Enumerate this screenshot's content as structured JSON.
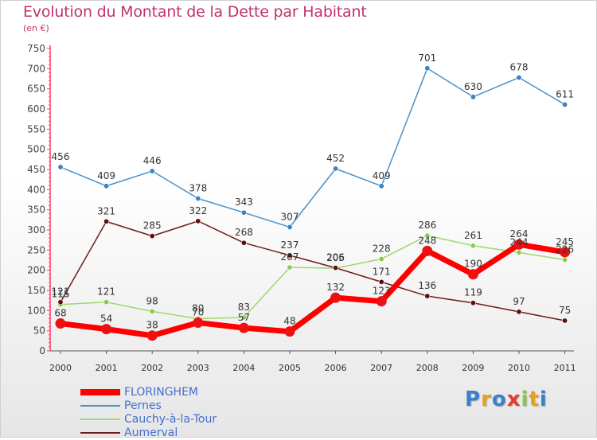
{
  "chart_data": {
    "type": "line",
    "title": "Evolution du Montant de la Dette par Habitant",
    "subtitle": "(en €)",
    "categories": [
      "2000",
      "2001",
      "2002",
      "2003",
      "2004",
      "2005",
      "2006",
      "2007",
      "2008",
      "2009",
      "2010",
      "2011"
    ],
    "ylim": [
      0,
      750
    ],
    "yticks": [
      0,
      50,
      100,
      150,
      200,
      250,
      300,
      350,
      400,
      450,
      500,
      550,
      600,
      650,
      700,
      750
    ],
    "grid": false,
    "legend_position": "bottom-left",
    "series": [
      {
        "name": "FLORINGHEM",
        "color": "#ff0000",
        "marker_color": "#ee1111",
        "width": "thick",
        "values": [
          68,
          54,
          38,
          70,
          57,
          48,
          132,
          123,
          248,
          190,
          264,
          245
        ]
      },
      {
        "name": "Pernes",
        "color": "#4a8fc8",
        "marker_color": "#3a82c4",
        "width": "thin",
        "values": [
          456,
          409,
          446,
          378,
          343,
          307,
          452,
          409,
          701,
          630,
          678,
          611
        ]
      },
      {
        "name": "Cauchy-à-la-Tour",
        "color": "#9ed86f",
        "marker_color": "#86cc4a",
        "width": "thin",
        "values": [
          115,
          121,
          98,
          80,
          83,
          207,
          205,
          228,
          286,
          261,
          244,
          226
        ]
      },
      {
        "name": "Aumerval",
        "color": "#6e1a1a",
        "marker_color": "#5a1010",
        "width": "thin",
        "values": [
          121,
          321,
          285,
          322,
          268,
          237,
          206,
          171,
          136,
          119,
          97,
          75
        ]
      }
    ]
  },
  "brand": {
    "letters": [
      {
        "ch": "P",
        "color": "#3a7fd0"
      },
      {
        "ch": "r",
        "color": "#e8a020"
      },
      {
        "ch": "o",
        "color": "#3a7fd0"
      },
      {
        "ch": "x",
        "color": "#e83a2a"
      },
      {
        "ch": "i",
        "color": "#8cc63f"
      },
      {
        "ch": "t",
        "color": "#e8a020"
      },
      {
        "ch": "i",
        "color": "#3a7fd0"
      }
    ]
  }
}
